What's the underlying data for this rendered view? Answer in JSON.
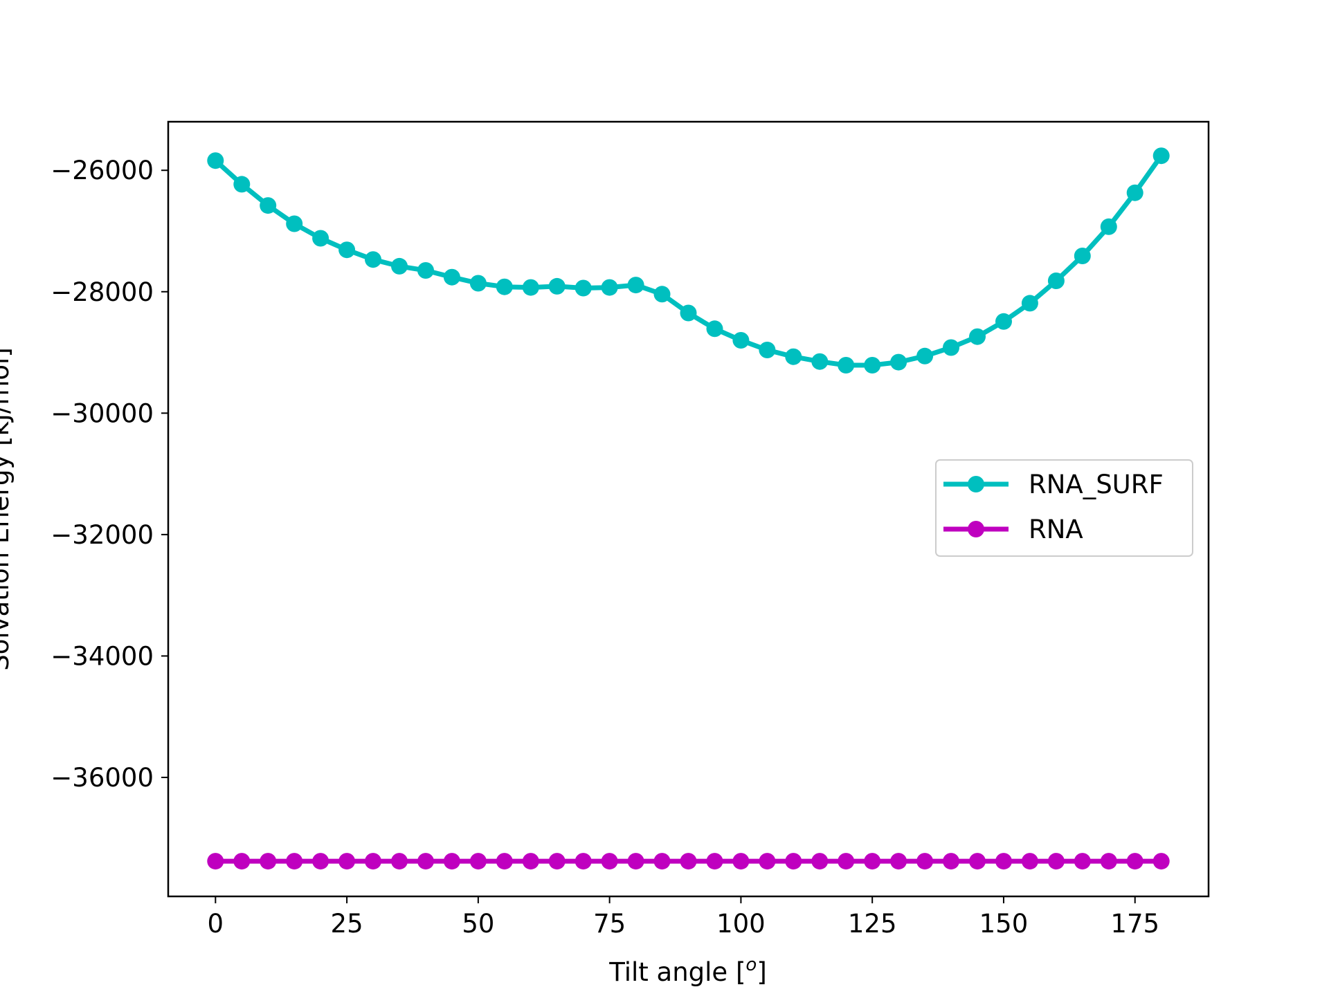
{
  "chart_data": {
    "type": "line",
    "title": "",
    "xlabel": "Tilt angle [",
    "xlabel_superscript": "o",
    "xlabel_suffix": "]",
    "ylabel": "Solvation Energy [kJ/mol]",
    "xlim": [
      -9,
      189
    ],
    "ylim": [
      -37960,
      -25200
    ],
    "xticks": [
      0,
      25,
      50,
      75,
      100,
      125,
      150,
      175
    ],
    "yticks": [
      -26000,
      -28000,
      -30000,
      -32000,
      -34000,
      -36000
    ],
    "ytick_labels": [
      "−26000",
      "−28000",
      "−30000",
      "−32000",
      "−34000",
      "−36000"
    ],
    "grid": false,
    "legend_position": "center-right",
    "x": [
      0,
      5,
      10,
      15,
      20,
      25,
      30,
      35,
      40,
      45,
      50,
      55,
      60,
      65,
      70,
      75,
      80,
      85,
      90,
      95,
      100,
      105,
      110,
      115,
      120,
      125,
      130,
      135,
      140,
      145,
      150,
      155,
      160,
      165,
      170,
      175,
      180
    ],
    "series": [
      {
        "name": "RNA_SURF",
        "color": "#00bfbf",
        "values": [
          -25840,
          -26230,
          -26580,
          -26880,
          -27120,
          -27310,
          -27470,
          -27580,
          -27650,
          -27760,
          -27860,
          -27920,
          -27930,
          -27910,
          -27940,
          -27930,
          -27890,
          -28040,
          -28350,
          -28610,
          -28800,
          -28960,
          -29070,
          -29150,
          -29210,
          -29210,
          -29160,
          -29060,
          -28920,
          -28740,
          -28490,
          -28190,
          -27820,
          -27410,
          -26930,
          -26370,
          -25760
        ]
      },
      {
        "name": "RNA",
        "color": "#bf00bf",
        "values": [
          -37380,
          -37380,
          -37380,
          -37380,
          -37380,
          -37380,
          -37380,
          -37380,
          -37380,
          -37380,
          -37380,
          -37380,
          -37380,
          -37380,
          -37380,
          -37380,
          -37380,
          -37380,
          -37380,
          -37380,
          -37380,
          -37380,
          -37380,
          -37380,
          -37380,
          -37380,
          -37380,
          -37380,
          -37380,
          -37380,
          -37380,
          -37380,
          -37380,
          -37380,
          -37380,
          -37380,
          -37380
        ]
      }
    ]
  }
}
